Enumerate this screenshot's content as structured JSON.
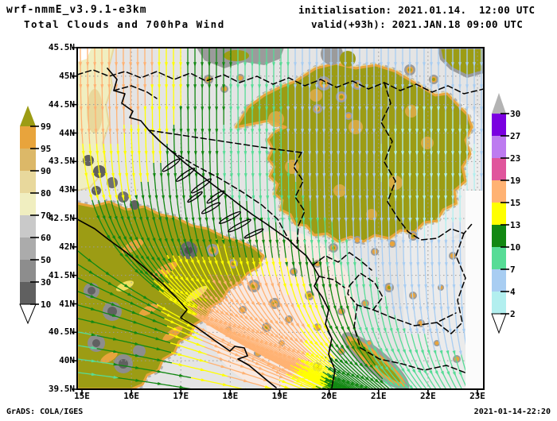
{
  "header": {
    "model": "wrf-nmmE_v3.9.1-e3km",
    "product": "Total Clouds and 700hPa Wind",
    "init": "initialisation: 2021.01.14.  12:00 UTC",
    "valid": "valid(+93h): 2021.JAN.18 09:00 UTC"
  },
  "footer": {
    "credit": "GrADS: COLA/IGES",
    "stamp": "2021-01-14-22:20"
  },
  "axes": {
    "lat_labels": [
      "45.5N",
      "45N",
      "44.5N",
      "44N",
      "43.5N",
      "43N",
      "42.5N",
      "42N",
      "41.5N",
      "41N",
      "40.5N",
      "40N",
      "39.5N"
    ],
    "lon_labels": [
      "15E",
      "16E",
      "17E",
      "18E",
      "19E",
      "20E",
      "21E",
      "22E",
      "23E"
    ]
  },
  "colorbars": {
    "cloud_cover": {
      "levels": [
        "10",
        "30",
        "50",
        "60",
        "70",
        "80",
        "90",
        "95",
        "99"
      ],
      "colors": [
        "#ffffff",
        "#606060",
        "#8d8d8d",
        "#ababab",
        "#c9c9c9",
        "#f0eec0",
        "#e8d89c",
        "#dcb868",
        "#e8a43c",
        "#9c9c14"
      ]
    },
    "wind_speed": {
      "levels": [
        "2",
        "4",
        "7",
        "10",
        "13",
        "15",
        "19",
        "23",
        "27",
        "30"
      ],
      "colors": [
        "#ffffff",
        "#b2efef",
        "#a8cdf2",
        "#57dc96",
        "#128812",
        "#ffff00",
        "#ffb273",
        "#e0559c",
        "#bd7bf0",
        "#7a00e0",
        "#b3b3b3"
      ]
    }
  }
}
